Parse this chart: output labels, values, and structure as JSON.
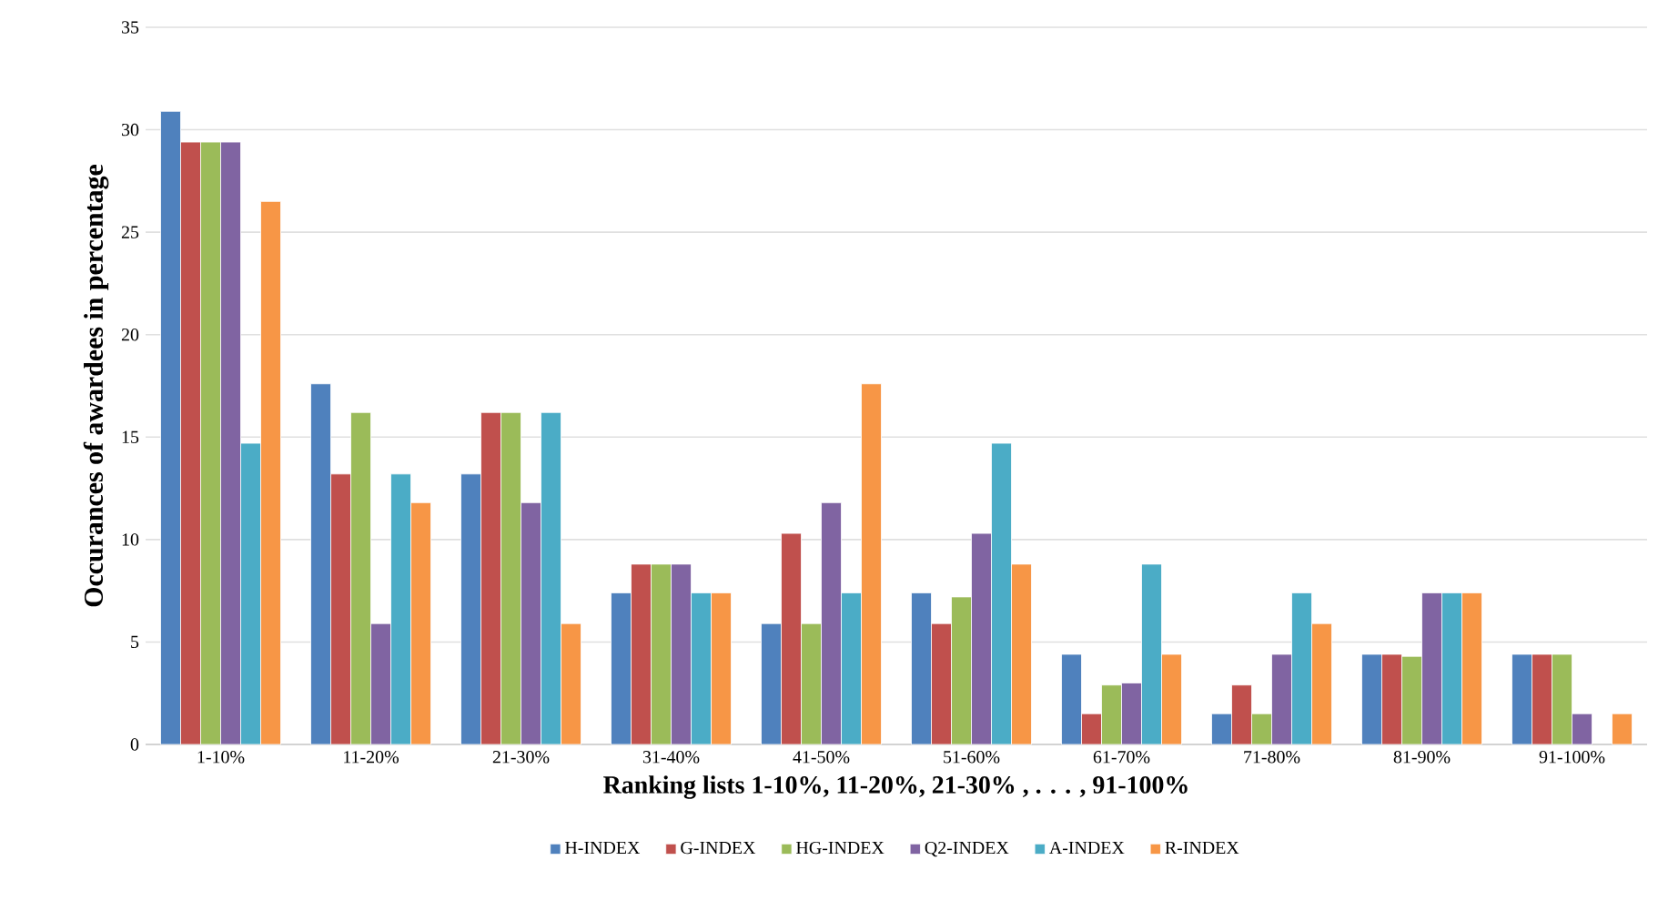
{
  "chart_data": {
    "type": "bar",
    "xlabel": "Ranking lists 1-10%, 11-20%, 21-30% , . . . , 91-100%",
    "ylabel": "Occurances of awardees in percentage",
    "categories": [
      "1-10%",
      "11-20%",
      "21-30%",
      "31-40%",
      "41-50%",
      "51-60%",
      "61-70%",
      "71-80%",
      "81-90%",
      "91-100%"
    ],
    "series": [
      {
        "name": "H-INDEX",
        "color": "#4f81bd",
        "values": [
          30.9,
          17.6,
          13.2,
          7.4,
          5.9,
          7.4,
          4.4,
          1.5,
          4.4,
          4.4
        ]
      },
      {
        "name": "G-INDEX",
        "color": "#c0504d",
        "values": [
          29.4,
          13.2,
          16.2,
          8.8,
          10.3,
          5.9,
          1.5,
          2.9,
          4.4,
          4.4
        ]
      },
      {
        "name": "HG-INDEX",
        "color": "#9bbb59",
        "values": [
          29.4,
          16.2,
          16.2,
          8.8,
          5.9,
          7.2,
          2.9,
          1.5,
          4.3,
          4.4
        ]
      },
      {
        "name": "Q2-INDEX",
        "color": "#8064a2",
        "values": [
          29.4,
          5.9,
          11.8,
          8.8,
          11.8,
          10.3,
          3.0,
          4.4,
          7.4,
          1.5
        ]
      },
      {
        "name": "A-INDEX",
        "color": "#4bacc6",
        "values": [
          14.7,
          13.2,
          16.2,
          7.4,
          7.4,
          14.7,
          8.8,
          7.4,
          7.4,
          null
        ]
      },
      {
        "name": "R-INDEX",
        "color": "#f79646",
        "values": [
          26.5,
          11.8,
          5.9,
          7.4,
          17.6,
          8.8,
          4.4,
          5.9,
          7.4,
          1.5
        ]
      }
    ],
    "ylim": [
      0,
      35
    ],
    "yticks": [
      0,
      5,
      10,
      15,
      20,
      25,
      30,
      35
    ],
    "grid": "y",
    "legend": "bottom"
  }
}
